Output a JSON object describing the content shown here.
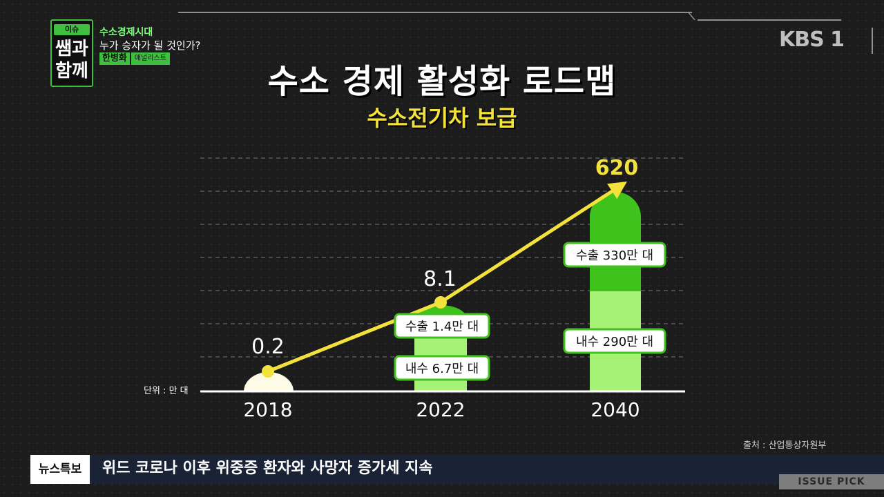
{
  "show": {
    "logo_top": "이슈 PICK",
    "logo_line1": "쌤과",
    "logo_line2": "함께",
    "topic_line1": "수소경제시대",
    "topic_line2": "누가 승자가 될 것인가?",
    "guest_name": "한병화",
    "guest_role": "애널리스트"
  },
  "broadcaster": "KBS 1",
  "chart_data": {
    "type": "bar",
    "title": "수소 경제 활성화 로드맵",
    "subtitle": "수소전기차 보급",
    "unit_label": "단위 : 만 대",
    "categories": [
      "2018",
      "2022",
      "2040"
    ],
    "totals": [
      0.2,
      8.1,
      620
    ],
    "total_labels": [
      "0.2",
      "8.1",
      "620"
    ],
    "series": [
      {
        "name": "내수",
        "values": [
          0.2,
          6.7,
          290
        ],
        "labels": [
          "",
          "내수 6.7만 대",
          "내수 290만 대"
        ],
        "color": "#a5f276"
      },
      {
        "name": "수출",
        "values": [
          0,
          1.4,
          330
        ],
        "labels": [
          "",
          "수출 1.4만 대",
          "수출 330만 대"
        ],
        "color": "#3fc21c"
      }
    ],
    "trend_line": {
      "color": "#f4e23c",
      "arrow": true
    },
    "grid": true,
    "scale": "non-linear (illustrative)"
  },
  "source": "출처 : 산업통상자원부",
  "ticker": {
    "label": "뉴스특보",
    "text": "위드 코로나 이후 위중증 환자와 사망자 증가세 지속"
  },
  "badge": "ISSUE PICK",
  "colors": {
    "accent_green": "#3fbf3f",
    "title_yellow": "#f4e23c",
    "ticker_bg": "#1a2236"
  }
}
